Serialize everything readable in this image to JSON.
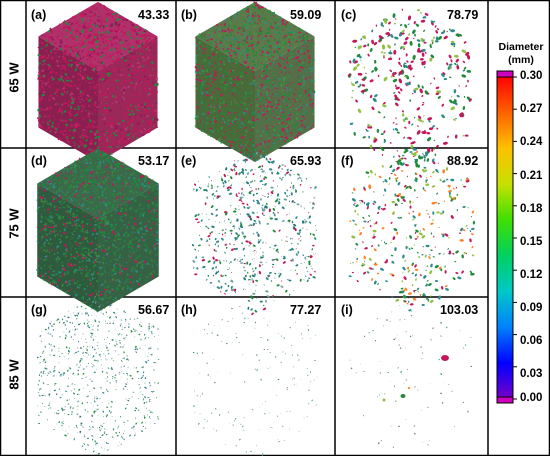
{
  "rows": [
    {
      "label": "65 W",
      "cells": [
        {
          "label": "(a)",
          "value": "43.33"
        },
        {
          "label": "(b)",
          "value": "59.09"
        },
        {
          "label": "(c)",
          "value": "78.79"
        }
      ]
    },
    {
      "label": "75 W",
      "cells": [
        {
          "label": "(d)",
          "value": "53.17"
        },
        {
          "label": "(e)",
          "value": "65.93"
        },
        {
          "label": "(f)",
          "value": "88.92"
        }
      ]
    },
    {
      "label": "85 W",
      "cells": [
        {
          "label": "(g)",
          "value": "56.67"
        },
        {
          "label": "(h)",
          "value": "77.27"
        },
        {
          "label": "(i)",
          "value": "103.03"
        }
      ]
    }
  ],
  "legend": {
    "title_line1": "Diameter",
    "title_line2": "(mm)",
    "ticks": [
      "0.30",
      "0.27",
      "0.24",
      "0.21",
      "0.18",
      "0.15",
      "0.12",
      "0.09",
      "0.06",
      "0.03",
      "0.00"
    ],
    "colormap": [
      "#7a00c8",
      "#0000ff",
      "#0080ff",
      "#00c8c8",
      "#00d060",
      "#40e000",
      "#c8e000",
      "#ffc000",
      "#ff6000",
      "#ff0000"
    ],
    "end_color": "#d000c0"
  },
  "colors": {
    "magenta": "#c2185b",
    "green": "#1f8a3a",
    "teal": "#2e8b8b",
    "light": "#6fa3a0"
  }
}
